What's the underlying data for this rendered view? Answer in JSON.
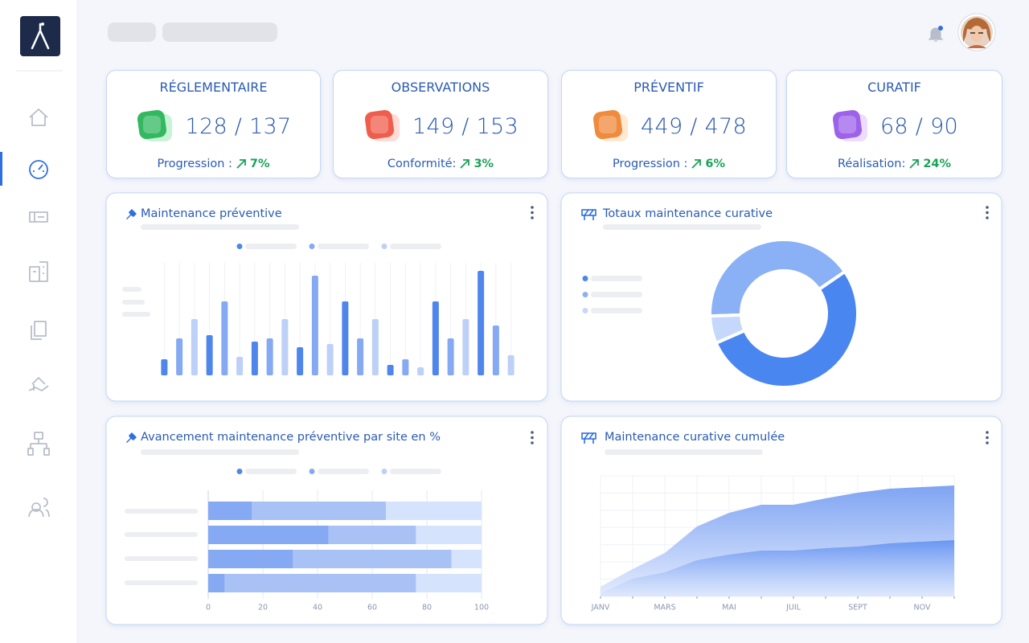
{
  "kpis": [
    {
      "title": "RÉGLEMENTAIRE",
      "value": "128 / 137",
      "label": "Progression :",
      "change": "7%"
    },
    {
      "title": "OBSERVATIONS",
      "value": "149 / 153",
      "label": "Conformité:",
      "change": "3%"
    },
    {
      "title": "PRÉVENTIF",
      "value": "449 / 478",
      "label": "Progression :",
      "change": "6%"
    },
    {
      "title": "CURATIF",
      "value": "68 / 90",
      "label": "Réalisation:",
      "change": "24%"
    }
  ],
  "chart_data": [
    {
      "type": "bar",
      "title": "Maintenance préventive",
      "categories": [
        null,
        null,
        null,
        null,
        null,
        null,
        null,
        null
      ],
      "series": [
        {
          "color": "#4f86ec",
          "values": [
            20,
            50,
            42,
            35,
            92,
            13,
            92,
            130
          ]
        },
        {
          "color": "#85a9f2",
          "values": [
            46,
            92,
            46,
            124,
            46,
            20,
            46,
            62
          ]
        },
        {
          "color": "#bcd0f8",
          "values": [
            70,
            23,
            70,
            39,
            70,
            10,
            70,
            25
          ]
        }
      ],
      "ylim": [
        0,
        140
      ]
    },
    {
      "type": "donut",
      "title": "Totaux maintenance curative",
      "categories": [
        null,
        null,
        null
      ],
      "values": [
        41,
        53,
        6
      ],
      "colors": [
        "#8ab0f5",
        "#4a86f0",
        "#c5d8fb"
      ]
    },
    {
      "type": "bar",
      "orientation": "horizontal",
      "stacked": true,
      "title": "Avancement maintenance préventive par site en %",
      "categories": [
        null,
        null,
        null,
        null
      ],
      "series": [
        {
          "color": "#85a9f2",
          "values": [
            16,
            44,
            31,
            6
          ]
        },
        {
          "color": "#a9c2f6",
          "values": [
            49,
            32,
            58,
            70
          ]
        },
        {
          "color": "#d6e3fc",
          "values": [
            35,
            24,
            11,
            24
          ]
        }
      ],
      "xlim": [
        0,
        100
      ],
      "xticks": [
        0,
        20,
        40,
        60,
        80,
        100
      ],
      "grid": true
    },
    {
      "type": "area",
      "title": "Maintenance curative cumulée",
      "categories": [
        "JANV",
        null,
        "MARS",
        null,
        "MAI",
        null,
        "JUIL",
        null,
        "SEPT",
        null,
        "NOV",
        null
      ],
      "series": [
        {
          "color": "#8ab0f5",
          "values": [
            12,
            34,
            54,
            87,
            104,
            114,
            114,
            122,
            129,
            134,
            136,
            138
          ]
        },
        {
          "color": "#5d8ef0",
          "values": [
            4,
            22,
            30,
            45,
            52,
            57,
            57,
            60,
            62,
            66,
            68,
            70
          ]
        }
      ],
      "ylim": [
        0,
        150
      ],
      "grid": true
    }
  ]
}
